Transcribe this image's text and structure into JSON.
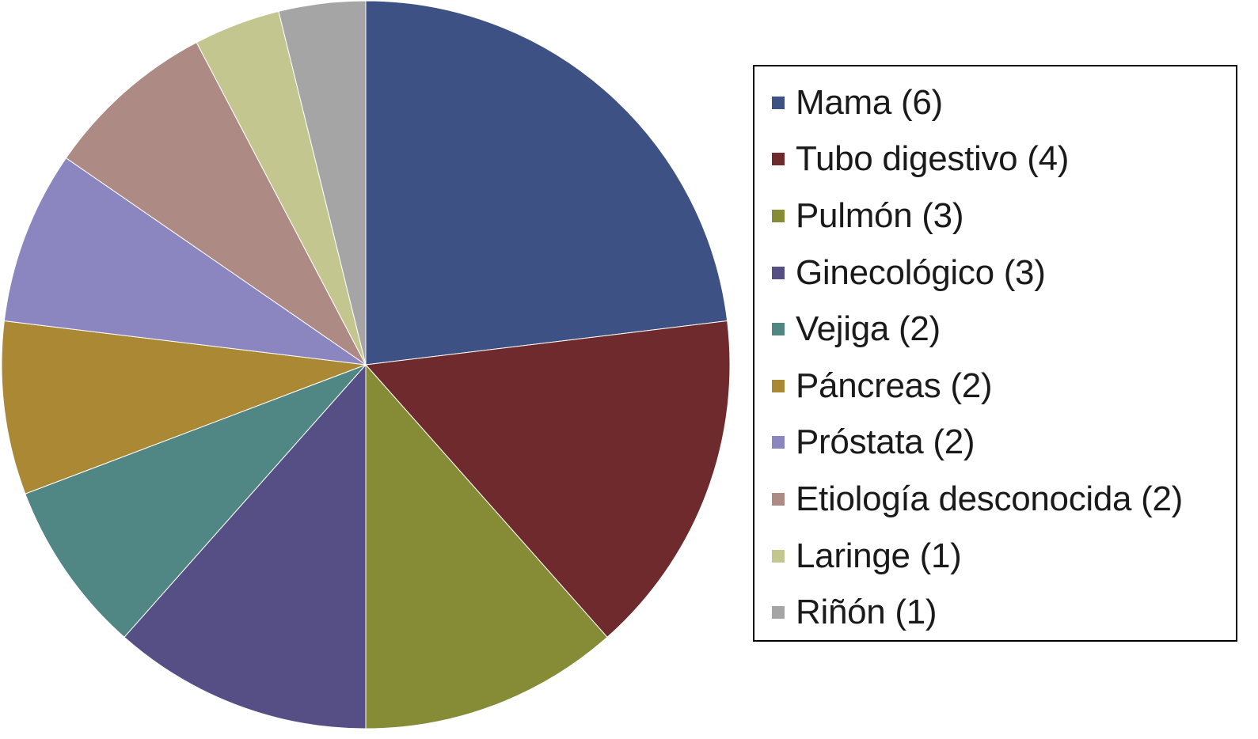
{
  "chart_data": {
    "type": "pie",
    "title": "",
    "legend_position": "right",
    "slices": [
      {
        "label": "Mama (6)",
        "value": 6,
        "color": "#3d5185"
      },
      {
        "label": "Tubo digestivo (4)",
        "value": 4,
        "color": "#6e2a2c"
      },
      {
        "label": "Pulmón (3)",
        "value": 3,
        "color": "#868b35"
      },
      {
        "label": "Ginecológico (3)",
        "value": 3,
        "color": "#554f85"
      },
      {
        "label": "Vejiga (2)",
        "value": 2,
        "color": "#508683"
      },
      {
        "label": "Páncreas (2)",
        "value": 2,
        "color": "#ab8834"
      },
      {
        "label": "Próstata (2)",
        "value": 2,
        "color": "#8b85c0"
      },
      {
        "label": "Etiología desconocida (2)",
        "value": 2,
        "color": "#ae8a85"
      },
      {
        "label": "Laringe (1)",
        "value": 1,
        "color": "#c3c68f"
      },
      {
        "label": "Riñón (1)",
        "value": 1,
        "color": "#a5a5a6"
      }
    ]
  }
}
